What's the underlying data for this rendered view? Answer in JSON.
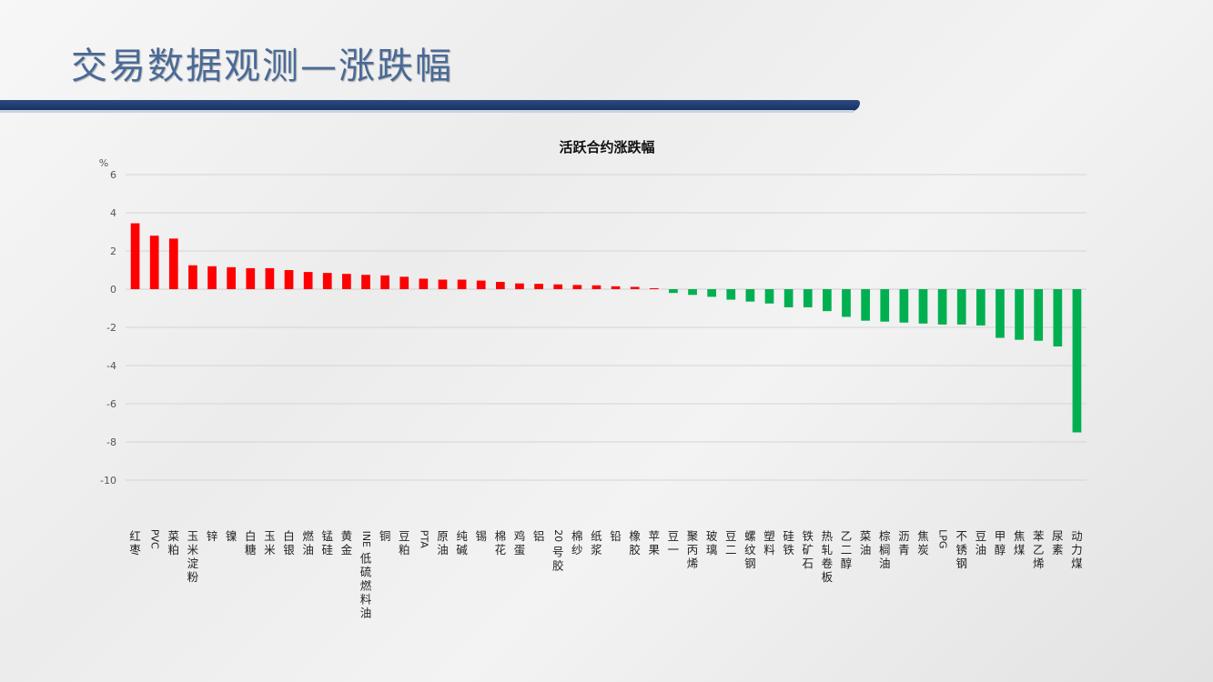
{
  "slide": {
    "title": "交易数据观测—涨跌幅"
  },
  "colors": {
    "positive": "#ff0000",
    "negative": "#00b050",
    "title_text": "#4a6a96",
    "title_bar": "#1f3a70"
  },
  "chart_data": {
    "type": "bar",
    "title": "活跃合约涨跌幅",
    "ylabel": "%",
    "xlabel": "",
    "ylim": [
      -10,
      6
    ],
    "yticks": [
      6,
      4,
      2,
      0,
      -2,
      -4,
      -6,
      -8,
      -10
    ],
    "grid": true,
    "legend": "none",
    "categories": [
      "红枣",
      "PVC",
      "菜粕",
      "玉米淀粉",
      "锌",
      "镍",
      "白糖",
      "玉米",
      "白银",
      "燃油",
      "锰硅",
      "黄金",
      "INE低硫燃料油",
      "铜",
      "豆粕",
      "PTA",
      "原油",
      "纯碱",
      "锡",
      "棉花",
      "鸡蛋",
      "铝",
      "20号胶",
      "棉纱",
      "纸浆",
      "铅",
      "橡胶",
      "苹果",
      "豆一",
      "聚丙烯",
      "玻璃",
      "豆二",
      "螺纹钢",
      "塑料",
      "硅铁",
      "铁矿石",
      "热轧卷板",
      "乙二醇",
      "菜油",
      "棕榈油",
      "沥青",
      "焦炭",
      "LPG",
      "不锈钢",
      "豆油",
      "甲醇",
      "焦煤",
      "苯乙烯",
      "尿素",
      "动力煤"
    ],
    "values": [
      3.45,
      2.8,
      2.65,
      1.25,
      1.2,
      1.15,
      1.1,
      1.1,
      1.0,
      0.9,
      0.85,
      0.8,
      0.75,
      0.72,
      0.65,
      0.55,
      0.5,
      0.5,
      0.45,
      0.38,
      0.3,
      0.28,
      0.25,
      0.22,
      0.2,
      0.15,
      0.12,
      0.05,
      -0.2,
      -0.3,
      -0.4,
      -0.55,
      -0.65,
      -0.75,
      -0.95,
      -0.95,
      -1.15,
      -1.45,
      -1.65,
      -1.7,
      -1.75,
      -1.8,
      -1.85,
      -1.85,
      -1.9,
      -2.55,
      -2.65,
      -2.7,
      -3.0,
      -7.5
    ]
  }
}
